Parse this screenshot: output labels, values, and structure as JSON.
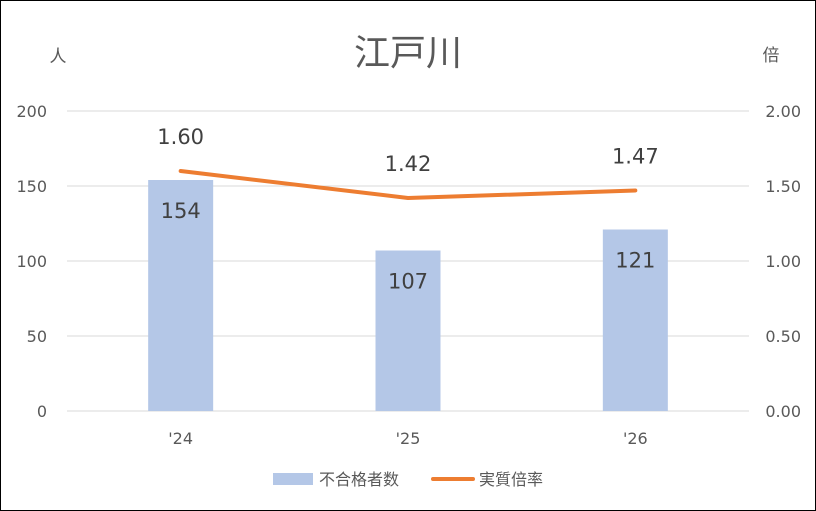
{
  "chart_data": {
    "type": "bar",
    "title": "江戸川",
    "categories": [
      "'24",
      "'25",
      "'26"
    ],
    "y_left_unit": "人",
    "y_right_unit": "倍",
    "y_left_ticks": [
      "0",
      "50",
      "100",
      "150",
      "200"
    ],
    "y_right_ticks": [
      "0.00",
      "0.50",
      "1.00",
      "1.50",
      "2.00"
    ],
    "ylim_left": [
      0,
      200
    ],
    "ylim_right": [
      0,
      2.0
    ],
    "grid": true,
    "legend_position": "bottom",
    "series": [
      {
        "name": "不合格者数",
        "type": "bar",
        "axis": "left",
        "color": "#B4C7E7",
        "values": [
          154,
          107,
          121
        ],
        "labels": [
          "154",
          "107",
          "121"
        ]
      },
      {
        "name": "実質倍率",
        "type": "line",
        "axis": "right",
        "color": "#ED7D31",
        "values": [
          1.6,
          1.42,
          1.47
        ],
        "labels": [
          "1.60",
          "1.42",
          "1.47"
        ]
      }
    ]
  }
}
